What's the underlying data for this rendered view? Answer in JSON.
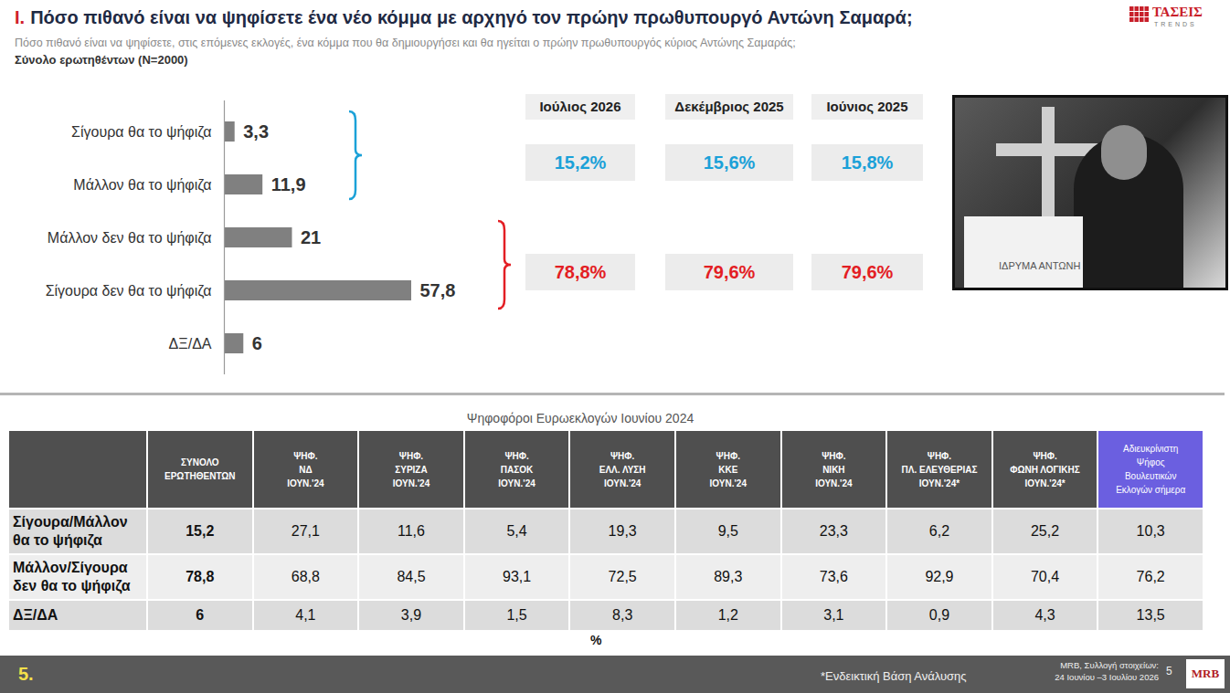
{
  "header": {
    "title_number": "I.",
    "title": "Πόσο πιθανό είναι να ψηφίσετε ένα νέο κόμμα με αρχηγό τον πρώην πρωθυπουργό Αντώνη Σαμαρά;",
    "subtitle": "Πόσο πιθανό είναι να ψηφίσετε, στις επόμενες εκλογές, ένα κόμμα που θα δημιουργήσει και θα ηγείται ο πρώην πρωθυπουργός κύριος Αντώνης Σαμαράς;",
    "base": "Σύνολο ερωτηθέντων (N=2000)",
    "logo": "ΤΑΣΕΙΣ",
    "logo_sub": "TRENDS"
  },
  "chart_data": {
    "type": "bar",
    "orientation": "horizontal",
    "categories": [
      "Σίγουρα θα το ψήφιζα",
      "Μάλλον θα το ψήφιζα",
      "Μάλλον δεν θα το ψήφιζα",
      "Σίγουρα δεν θα το ψήφιζα",
      "ΔΞ/ΔΑ"
    ],
    "values": [
      3.3,
      11.9,
      21,
      57.8,
      6
    ],
    "value_labels": [
      "3,3",
      "11,9",
      "21",
      "57,8",
      "6"
    ],
    "color": "#808080",
    "data_labels": true,
    "tick_labels": "y"
  },
  "trend": {
    "periods": [
      "Ιούλιος 2026",
      "Δεκέμβριος 2025",
      "Ιούνιος 2025"
    ],
    "rows": [
      {
        "color": "#1ba1d8",
        "labels": [
          "15,2%",
          "15,6%",
          "15,8%"
        ]
      },
      {
        "color": "#e31e24",
        "labels": [
          "78,8%",
          "79,6%",
          "79,6%"
        ]
      }
    ]
  },
  "photo": {
    "text": "ΙΔΡΥΜΑ ΑΝΤΩΝΗ"
  },
  "table": {
    "title": "Ψηφοφόροι Ευρωεκλογών Ιουνίου 2024",
    "columns": [
      "ΣΥΝΟΛΟ\nΕΡΩΤΗΘΕΝΤΩΝ",
      "ΨΗΦ.\nΝΔ\nΙΟΥΝ.'24",
      "ΨΗΦ.\nΣΥΡΙΖΑ\nΙΟΥΝ.'24",
      "ΨΗΦ.\nΠΑΣΟΚ\nΙΟΥΝ.'24",
      "ΨΗΦ.\nΕΛΛ. ΛΥΣΗ\nΙΟΥΝ.'24",
      "ΨΗΦ.\nΚΚΕ\nΙΟΥΝ.'24",
      "ΨΗΦ.\nΝΙΚΗ\nΙΟΥΝ.'24",
      "ΨΗΦ.\nΠΛ. ΕΛΕΥΘΕΡΙΑΣ\nΙΟΥΝ.'24*",
      "ΨΗΦ.\nΦΩΝΗ ΛΟΓΙΚΗΣ\nΙΟΥΝ.'24*",
      "Αδιευκρίνιστη\nΨήφος\nΒουλευτικών\nΕκλογών σήμερα"
    ],
    "rows": [
      {
        "label": "Σίγουρα/Μάλλον\nθα το ψήφιζα",
        "cells": [
          "15,2",
          "27,1",
          "11,6",
          "5,4",
          "19,3",
          "9,5",
          "23,3",
          "6,2",
          "25,2",
          "10,3"
        ]
      },
      {
        "label": "Μάλλον/Σίγουρα\nδεν θα το ψήφιζα",
        "cells": [
          "78,8",
          "68,8",
          "84,5",
          "93,1",
          "72,5",
          "89,3",
          "73,6",
          "92,9",
          "70,4",
          "76,2"
        ]
      },
      {
        "label": "ΔΞ/ΔΑ",
        "cells": [
          "6",
          "4,1",
          "3,9",
          "1,5",
          "8,3",
          "1,2",
          "3,1",
          "0,9",
          "4,3",
          "13,5"
        ]
      }
    ],
    "unit": "%"
  },
  "footer": {
    "page_label": "5.",
    "note": "*Ενδεικτική Βάση Ανάλυσης",
    "source": "MRB, Συλλογή στοιχείων:",
    "dates": "24 Ιουνίου –3 Ιουλίου 2026",
    "page_number": "5",
    "logo": "MRB"
  }
}
